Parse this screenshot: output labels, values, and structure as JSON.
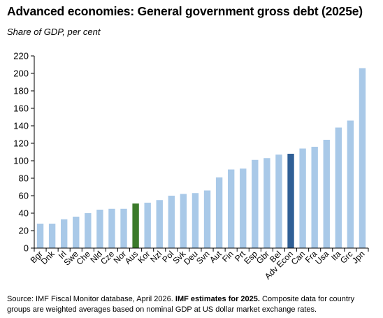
{
  "title": "Advanced economies: General government gross debt (2025e)",
  "subtitle": "Share of GDP, per cent",
  "source": {
    "part1": "Source: IMF Fiscal Monitor database, April 2026.  ",
    "bold": "IMF estimates for 2025.",
    "part2": " Composite data for country groups are weighted averages based on nominal GDP at US dollar market exchange rates."
  },
  "colors": {
    "default_bar": "#a9c9e8",
    "highlight_australia": "#3b7a2a",
    "highlight_adv_econ": "#2f5f96",
    "axis": "#000000"
  },
  "chart_data": {
    "type": "bar",
    "categories": [
      "Bgr",
      "Dnk",
      "Irl",
      "Swe",
      "Che",
      "Nld",
      "Cze",
      "Nor",
      "Aus",
      "Kor",
      "Nzl",
      "Pol",
      "Svk",
      "Deu",
      "Svn",
      "Aut",
      "Fin",
      "Prt",
      "Esp",
      "Gbr",
      "Bel",
      "Adv Econ",
      "Can",
      "Fra",
      "Usa",
      "Ita",
      "Grc",
      "Jpn"
    ],
    "values": [
      28,
      28,
      33,
      36,
      40,
      44,
      45,
      45,
      51,
      52,
      55,
      60,
      62,
      63,
      66,
      81,
      90,
      91,
      101,
      103,
      107,
      108,
      114,
      116,
      124,
      138,
      146,
      206
    ],
    "highlight": {
      "Aus": "highlight_australia",
      "Adv Econ": "highlight_adv_econ"
    },
    "ylim": [
      0,
      220
    ],
    "yticks": [
      "0",
      "20",
      "40",
      "60",
      "80",
      "100",
      "120",
      "140",
      "160",
      "180",
      "200",
      "220"
    ],
    "grid": false,
    "legend": "none"
  }
}
